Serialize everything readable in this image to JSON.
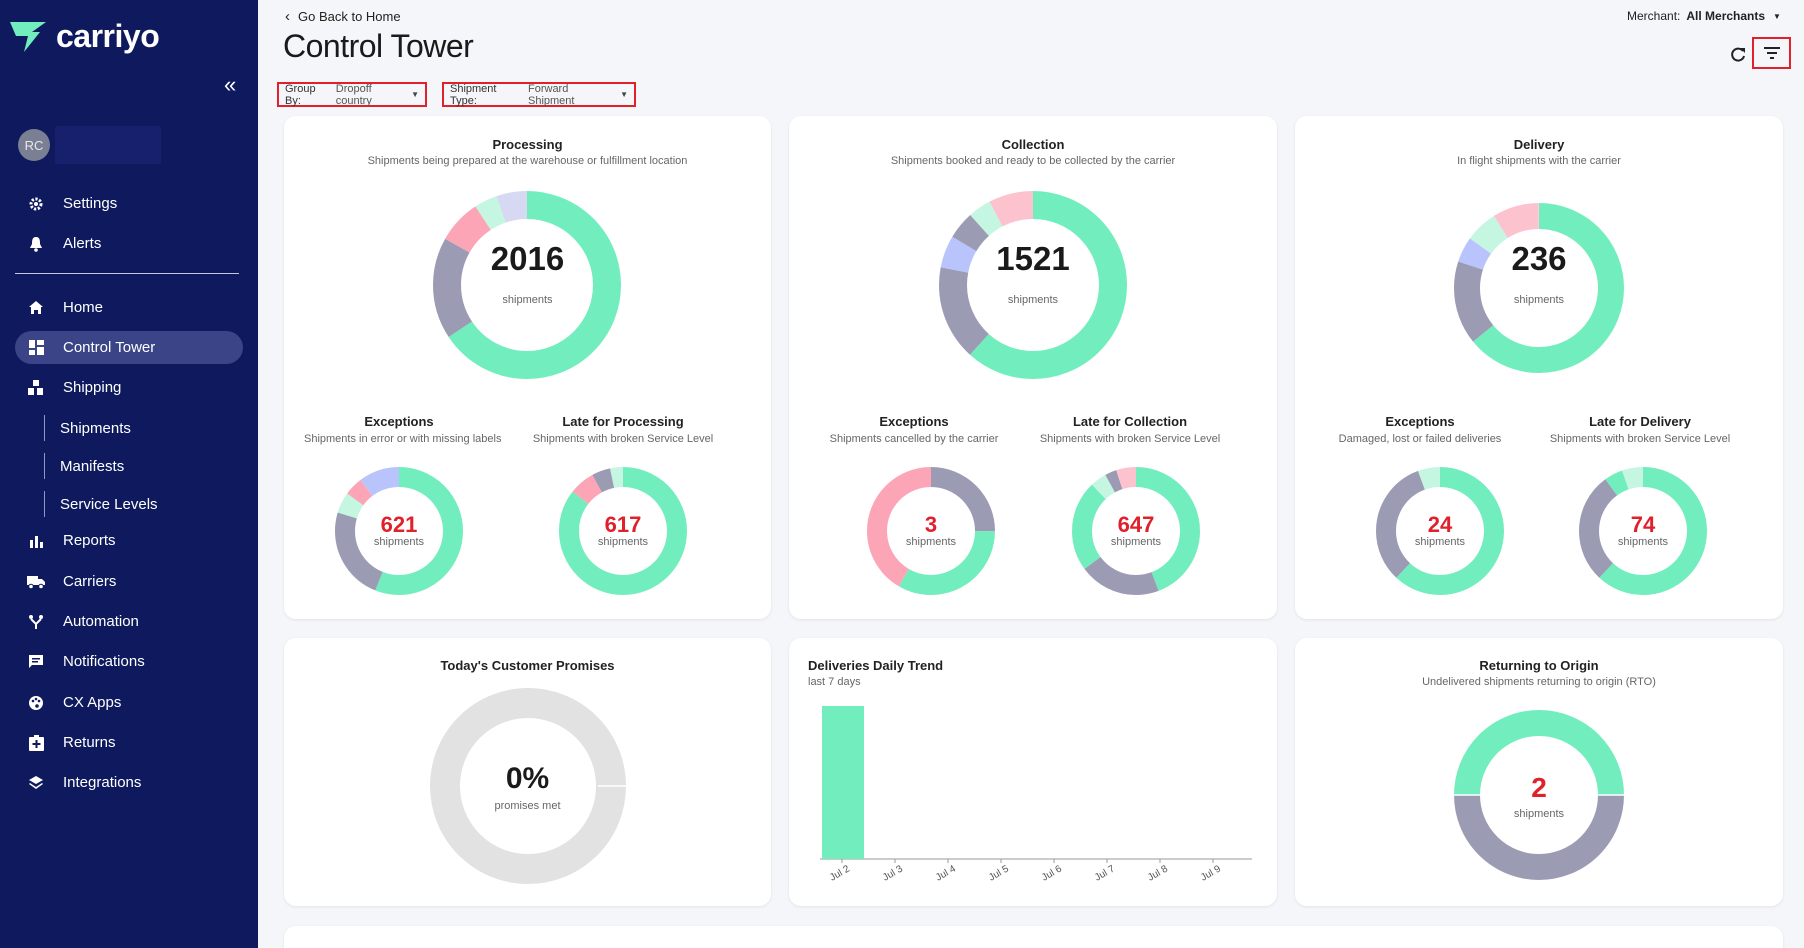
{
  "app": {
    "logo_text": "carriyo",
    "user_initials": "RC"
  },
  "sidebar": {
    "top_items": [
      {
        "label": "Settings",
        "icon": "gear-icon"
      },
      {
        "label": "Alerts",
        "icon": "bell-icon"
      }
    ],
    "items": [
      {
        "label": "Home",
        "icon": "home-icon"
      },
      {
        "label": "Control Tower",
        "icon": "dashboard-icon",
        "active": true
      },
      {
        "label": "Shipping",
        "icon": "shipping-icon"
      },
      {
        "label": "Reports",
        "icon": "bar-chart-icon"
      },
      {
        "label": "Carriers",
        "icon": "truck-icon"
      },
      {
        "label": "Automation",
        "icon": "automation-icon"
      },
      {
        "label": "Notifications",
        "icon": "message-icon"
      },
      {
        "label": "CX Apps",
        "icon": "palette-icon"
      },
      {
        "label": "Returns",
        "icon": "return-icon"
      },
      {
        "label": "Integrations",
        "icon": "layers-icon"
      }
    ],
    "shipping_sub": [
      {
        "label": "Shipments"
      },
      {
        "label": "Manifests"
      },
      {
        "label": "Service Levels"
      }
    ]
  },
  "header": {
    "back_label": "Go Back to Home",
    "title": "Control Tower",
    "merchant_label": "Merchant:",
    "merchant_value": "All Merchants"
  },
  "filters": {
    "group_by_label": "Group By:",
    "group_by_value": "Dropoff country",
    "shipment_type_label": "Shipment Type:",
    "shipment_type_value": "Forward Shipment"
  },
  "colors": {
    "green": "#72edbe",
    "gray": "#9b9bb3",
    "pink": "#fca5b6",
    "blue": "#b8c4fb",
    "red": "#e0202b",
    "light_gray": "#e2e2e2"
  },
  "cards": {
    "processing": {
      "title": "Processing",
      "subtitle": "Shipments being prepared at the warehouse or fulfillment location",
      "total": "2016",
      "unit": "shipments",
      "exceptions": {
        "title": "Exceptions",
        "subtitle": "Shipments in error or with missing labels",
        "value": "621",
        "unit": "shipments"
      },
      "late": {
        "title": "Late for Processing",
        "subtitle": "Shipments with broken Service Level",
        "value": "617",
        "unit": "shipments"
      }
    },
    "collection": {
      "title": "Collection",
      "subtitle": "Shipments booked and ready to be collected by the carrier",
      "total": "1521",
      "unit": "shipments",
      "exceptions": {
        "title": "Exceptions",
        "subtitle": "Shipments cancelled by the carrier",
        "value": "3",
        "unit": "shipments"
      },
      "late": {
        "title": "Late for Collection",
        "subtitle": "Shipments with broken Service Level",
        "value": "647",
        "unit": "shipments"
      }
    },
    "delivery": {
      "title": "Delivery",
      "subtitle": "In flight shipments with the carrier",
      "total": "236",
      "unit": "shipments",
      "exceptions": {
        "title": "Exceptions",
        "subtitle": "Damaged, lost or failed deliveries",
        "value": "24",
        "unit": "shipments"
      },
      "late": {
        "title": "Late for Delivery",
        "subtitle": "Shipments with broken Service Level",
        "value": "74",
        "unit": "shipments"
      }
    },
    "promises": {
      "title": "Today's Customer Promises",
      "value": "0%",
      "unit": "promises met"
    },
    "trend": {
      "title": "Deliveries Daily Trend",
      "subtitle": "last 7 days"
    },
    "rto": {
      "title": "Returning to Origin",
      "subtitle": "Undelivered shipments returning to origin (RTO)",
      "value": "2",
      "unit": "shipments"
    }
  },
  "chart_data": {
    "type": "bar",
    "title": "Deliveries Daily Trend",
    "categories": [
      "Jul 2",
      "Jul 3",
      "Jul 4",
      "Jul 5",
      "Jul 6",
      "Jul 7",
      "Jul 8",
      "Jul 9"
    ],
    "values": [
      100,
      0,
      0,
      0,
      0,
      0,
      0,
      0
    ],
    "ylim": [
      0,
      100
    ]
  }
}
